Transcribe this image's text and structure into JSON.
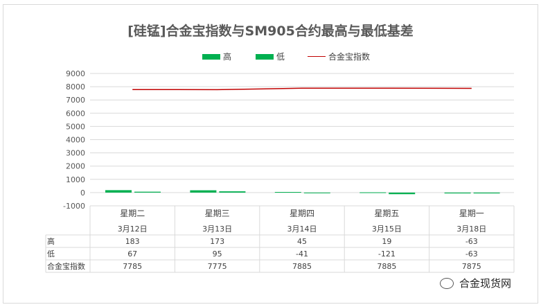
{
  "chart_data": {
    "type": "bar",
    "title": "[硅锰]合金宝指数与SM905合约最高与最低基差",
    "categories": [
      {
        "weekday": "星期二",
        "date": "3月12日"
      },
      {
        "weekday": "星期三",
        "date": "3月13日"
      },
      {
        "weekday": "星期四",
        "date": "3月14日"
      },
      {
        "weekday": "星期五",
        "date": "3月15日"
      },
      {
        "weekday": "星期一",
        "date": "3月18日"
      }
    ],
    "series": [
      {
        "name": "高",
        "type": "bar",
        "color": "#00b050",
        "values": [
          183,
          173,
          45,
          19,
          -63
        ]
      },
      {
        "name": "低",
        "type": "bar",
        "color": "#00b050",
        "values": [
          67,
          95,
          -41,
          -121,
          -63
        ]
      },
      {
        "name": "合金宝指数",
        "type": "line",
        "color": "#c00000",
        "values": [
          7785,
          7775,
          7885,
          7885,
          7875
        ]
      }
    ],
    "ylim": [
      -1000,
      9000
    ],
    "yticks": [
      9000,
      8000,
      7000,
      6000,
      5000,
      4000,
      3000,
      2000,
      1000,
      0,
      -1000
    ],
    "grid": true,
    "legend_position": "top"
  },
  "watermark": "合金现货网"
}
